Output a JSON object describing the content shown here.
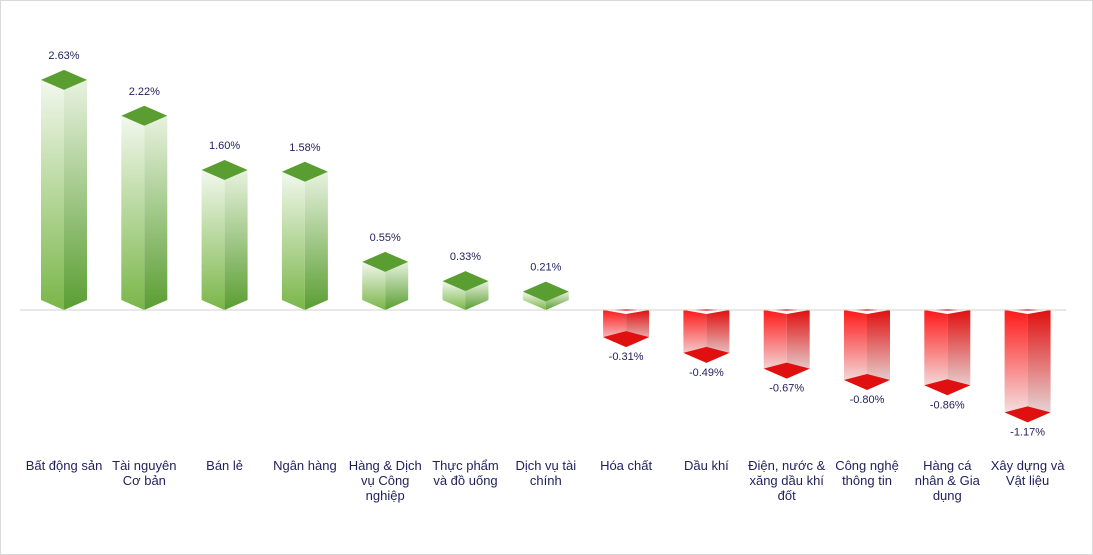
{
  "chart_data": {
    "type": "bar",
    "categories": [
      [
        "Bất động sản"
      ],
      [
        "Tài nguyên",
        "Cơ bản"
      ],
      [
        "Bán lẻ"
      ],
      [
        "Ngân hàng"
      ],
      [
        "Hàng & Dịch",
        "vụ Công",
        "nghiệp"
      ],
      [
        "Thực phẩm",
        "và đồ uống"
      ],
      [
        "Dịch vụ tài",
        "chính"
      ],
      [
        "Hóa chất"
      ],
      [
        "Dầu khí"
      ],
      [
        "Điện, nước &",
        "xăng dầu khí",
        "đốt"
      ],
      [
        "Công nghệ",
        "thông tin"
      ],
      [
        "Hàng cá",
        "nhân & Gia",
        "dụng"
      ],
      [
        "Xây dựng và",
        "Vật liệu"
      ]
    ],
    "values": [
      2.63,
      2.22,
      1.6,
      1.58,
      0.55,
      0.33,
      0.21,
      -0.31,
      -0.49,
      -0.67,
      -0.8,
      -0.86,
      -1.17
    ],
    "data_labels": [
      "2.63%",
      "2.22%",
      "1.60%",
      "1.58%",
      "0.55%",
      "0.33%",
      "0.21%",
      "-0.31%",
      "-0.49%",
      "-0.67%",
      "-0.80%",
      "-0.86%",
      "-1.17%"
    ],
    "ylim": [
      -1.5,
      3.0
    ],
    "grid": false,
    "legend": "none",
    "colors": {
      "positive_dark": "#5a9e32",
      "positive_mid": "#7ab648",
      "positive_light": "#f2f8ee",
      "negative_dark": "#e01010",
      "negative_mid": "#ff1a1a",
      "negative_light": "#f2f2f2",
      "axis": "#d0d0d0",
      "text": "#1f1f5c"
    }
  }
}
